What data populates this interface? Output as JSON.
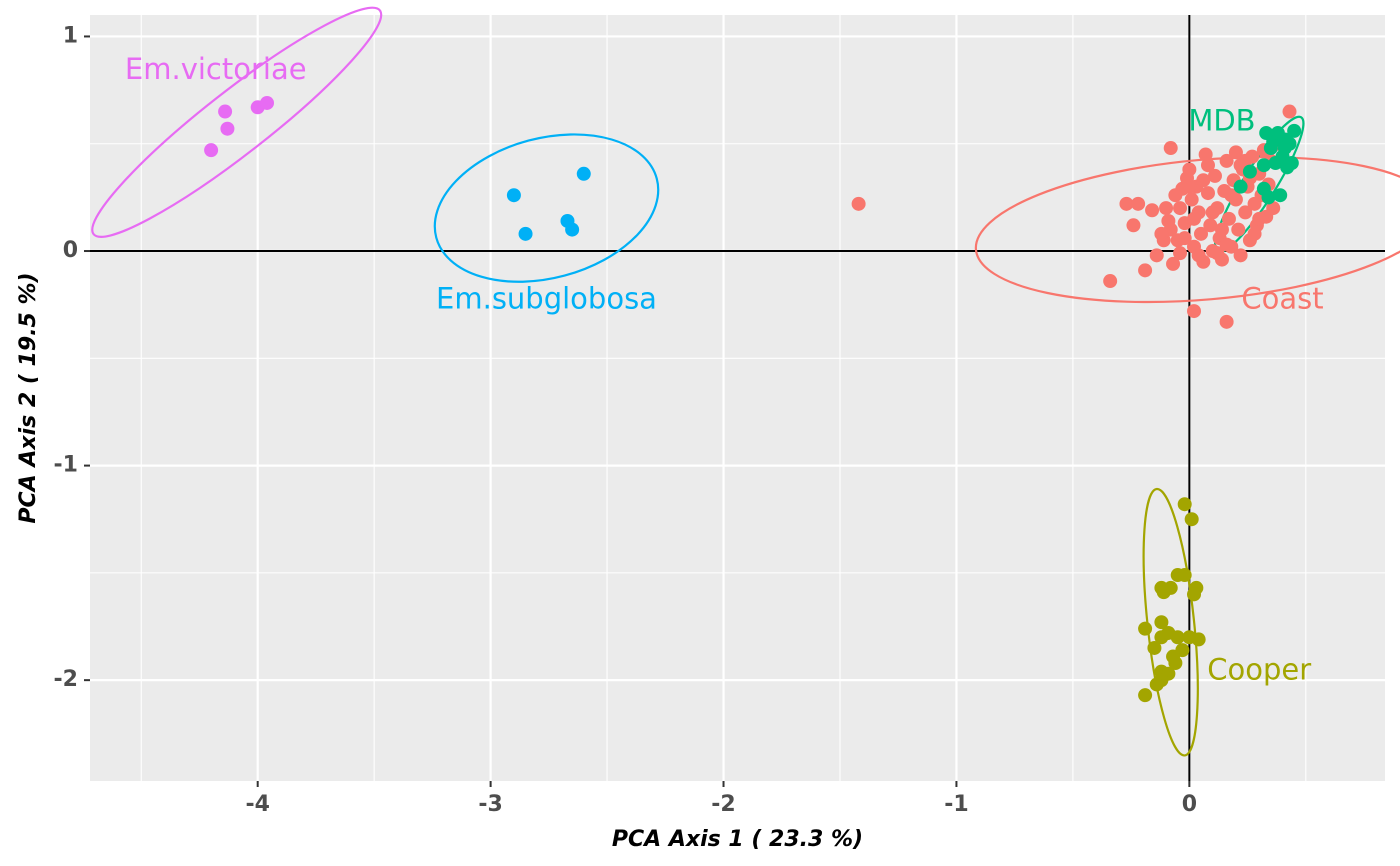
{
  "chart_data": {
    "type": "scatter",
    "xlabel": "PCA Axis 1 ( 23.3 %)",
    "ylabel": "PCA Axis 2 ( 19.5 %)",
    "xlim": [
      -4.72,
      0.84
    ],
    "ylim": [
      -2.47,
      1.1
    ],
    "x_ticks": [
      -4,
      -3,
      -2,
      -1,
      0
    ],
    "x_tick_labels": [
      "-4",
      "-3",
      "-2",
      "-1",
      "0"
    ],
    "y_ticks": [
      -2,
      -1,
      0,
      1
    ],
    "y_tick_labels": [
      "-2",
      "-1",
      "0",
      "1"
    ],
    "grid": true,
    "reference_lines": {
      "x": 0,
      "y": 0
    },
    "series": [
      {
        "name": "Em.victoriae",
        "color": "#e76bf3",
        "label_pos": [
          -4.18,
          0.84
        ],
        "ellipse": {
          "cx": -4.09,
          "cy": 0.6,
          "rx": 0.78,
          "ry": 0.135,
          "angle_deg": 38
        },
        "points": [
          [
            -4.2,
            0.47
          ],
          [
            -4.13,
            0.57
          ],
          [
            -4.14,
            0.65
          ],
          [
            -4.0,
            0.67
          ],
          [
            -3.96,
            0.69
          ]
        ]
      },
      {
        "name": "Em.subglobosa",
        "color": "#00b0f6",
        "label_pos": [
          -2.76,
          -0.23
        ],
        "ellipse": {
          "cx": -2.76,
          "cy": 0.2,
          "rx": 0.49,
          "ry": 0.3,
          "angle_deg": 15
        },
        "points": [
          [
            -2.9,
            0.26
          ],
          [
            -2.85,
            0.08
          ],
          [
            -2.67,
            0.14
          ],
          [
            -2.65,
            0.1
          ],
          [
            -2.6,
            0.36
          ]
        ]
      },
      {
        "name": "Coast",
        "color": "#f8766d",
        "label_pos": [
          0.4,
          -0.23
        ],
        "ellipse": {
          "cx": 0.07,
          "cy": 0.1,
          "rx": 0.99,
          "ry": 0.3,
          "angle_deg": 5
        },
        "points": [
          [
            -1.42,
            0.22
          ],
          [
            -0.34,
            -0.14
          ],
          [
            0.02,
            -0.28
          ],
          [
            0.16,
            -0.33
          ],
          [
            0.43,
            0.65
          ],
          [
            -0.08,
            0.48
          ],
          [
            -0.27,
            0.22
          ],
          [
            -0.22,
            0.22
          ],
          [
            -0.24,
            0.12
          ],
          [
            -0.16,
            0.19
          ],
          [
            -0.19,
            -0.09
          ],
          [
            -0.14,
            -0.02
          ],
          [
            -0.11,
            0.05
          ],
          [
            -0.1,
            0.2
          ],
          [
            -0.09,
            0.14
          ],
          [
            -0.08,
            0.1
          ],
          [
            -0.07,
            -0.06
          ],
          [
            -0.05,
            0.05
          ],
          [
            -0.04,
            0.2
          ],
          [
            -0.03,
            0.29
          ],
          [
            -0.02,
            0.13
          ],
          [
            -0.01,
            0.34
          ],
          [
            0.0,
            0.38
          ],
          [
            0.01,
            0.24
          ],
          [
            0.02,
            0.02
          ],
          [
            0.03,
            0.3
          ],
          [
            0.04,
            0.18
          ],
          [
            0.05,
            0.08
          ],
          [
            0.06,
            -0.05
          ],
          [
            0.07,
            0.45
          ],
          [
            0.08,
            0.27
          ],
          [
            0.09,
            0.12
          ],
          [
            0.1,
            0.0
          ],
          [
            0.11,
            0.35
          ],
          [
            0.12,
            0.2
          ],
          [
            0.13,
            0.06
          ],
          [
            0.14,
            -0.04
          ],
          [
            0.15,
            0.28
          ],
          [
            0.16,
            0.42
          ],
          [
            0.17,
            0.15
          ],
          [
            0.18,
            0.02
          ],
          [
            0.19,
            0.33
          ],
          [
            0.2,
            0.24
          ],
          [
            0.21,
            0.1
          ],
          [
            0.22,
            -0.02
          ],
          [
            0.23,
            0.38
          ],
          [
            0.24,
            0.18
          ],
          [
            0.25,
            0.3
          ],
          [
            0.26,
            0.05
          ],
          [
            0.27,
            0.44
          ],
          [
            0.28,
            0.22
          ],
          [
            0.29,
            0.12
          ],
          [
            0.3,
            0.36
          ],
          [
            0.31,
            0.26
          ],
          [
            0.32,
            0.47
          ],
          [
            0.33,
            0.16
          ],
          [
            0.34,
            0.31
          ],
          [
            0.35,
            0.42
          ],
          [
            0.36,
            0.2
          ],
          [
            0.38,
            0.5
          ],
          [
            -0.06,
            0.26
          ],
          [
            0.0,
            0.3
          ],
          [
            0.02,
            0.15
          ],
          [
            0.06,
            0.33
          ],
          [
            0.1,
            0.18
          ],
          [
            0.14,
            0.1
          ],
          [
            0.18,
            0.26
          ],
          [
            0.22,
            0.4
          ],
          [
            0.26,
            0.34
          ],
          [
            0.3,
            0.15
          ],
          [
            -0.12,
            0.08
          ],
          [
            -0.04,
            -0.01
          ],
          [
            0.08,
            0.4
          ],
          [
            0.12,
            -0.01
          ],
          [
            0.2,
            0.46
          ],
          [
            -0.02,
            0.06
          ],
          [
            0.04,
            -0.02
          ],
          [
            0.16,
            0.03
          ],
          [
            0.24,
            0.42
          ],
          [
            0.28,
            0.08
          ]
        ]
      },
      {
        "name": "MDB",
        "color": "#00bf7d",
        "label_pos": [
          0.14,
          0.6
        ],
        "ellipse": {
          "cx": 0.3,
          "cy": 0.31,
          "rx": 0.34,
          "ry": 0.07,
          "angle_deg": 58
        },
        "points": [
          [
            0.22,
            0.3
          ],
          [
            0.26,
            0.37
          ],
          [
            0.32,
            0.29
          ],
          [
            0.32,
            0.4
          ],
          [
            0.34,
            0.25
          ],
          [
            0.36,
            0.51
          ],
          [
            0.37,
            0.41
          ],
          [
            0.38,
            0.55
          ],
          [
            0.39,
            0.26
          ],
          [
            0.4,
            0.44
          ],
          [
            0.41,
            0.52
          ],
          [
            0.42,
            0.39
          ],
          [
            0.43,
            0.5
          ],
          [
            0.44,
            0.41
          ],
          [
            0.45,
            0.56
          ],
          [
            0.33,
            0.55
          ],
          [
            0.35,
            0.48
          ],
          [
            0.41,
            0.48
          ]
        ]
      },
      {
        "name": "Cooper",
        "color": "#a3a500",
        "label_pos": [
          0.3,
          -1.96
        ],
        "ellipse": {
          "cx": -0.08,
          "cy": -1.73,
          "rx": 0.575,
          "ry": 0.1,
          "angle_deg": -84
        },
        "points": [
          [
            -0.02,
            -1.18
          ],
          [
            0.01,
            -1.25
          ],
          [
            -0.05,
            -1.51
          ],
          [
            -0.02,
            -1.51
          ],
          [
            -0.12,
            -1.57
          ],
          [
            -0.08,
            -1.57
          ],
          [
            -0.11,
            -1.59
          ],
          [
            0.03,
            -1.57
          ],
          [
            0.02,
            -1.6
          ],
          [
            -0.12,
            -1.73
          ],
          [
            -0.19,
            -1.76
          ],
          [
            -0.12,
            -1.8
          ],
          [
            -0.09,
            -1.78
          ],
          [
            -0.05,
            -1.8
          ],
          [
            0.0,
            -1.8
          ],
          [
            0.04,
            -1.81
          ],
          [
            -0.15,
            -1.85
          ],
          [
            -0.03,
            -1.86
          ],
          [
            -0.06,
            -1.92
          ],
          [
            -0.07,
            -1.89
          ],
          [
            -0.12,
            -1.96
          ],
          [
            -0.09,
            -1.97
          ],
          [
            -0.12,
            -2.0
          ],
          [
            -0.14,
            -2.02
          ],
          [
            -0.19,
            -2.07
          ]
        ]
      }
    ]
  }
}
